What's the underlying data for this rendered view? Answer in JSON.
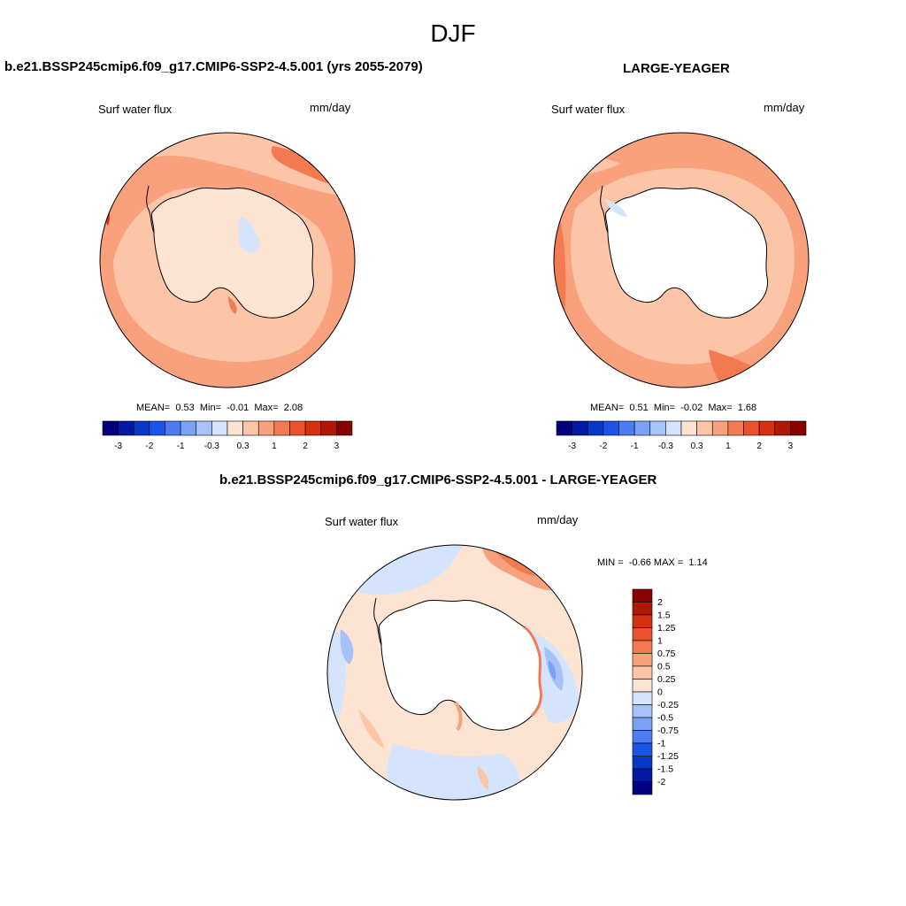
{
  "figure": {
    "season": "DJF"
  },
  "panels": [
    {
      "title": "b.e21.BSSP245cmip6.f09_g17.CMIP6-SSP2-4.5.001 (yrs 2055-2079)",
      "variable": "Surf water flux",
      "units": "mm/day",
      "stats": {
        "mean_label": "MEAN=",
        "mean": "0.53",
        "min_label": "Min=",
        "min": "-0.01",
        "max_label": "Max=",
        "max": "2.08"
      }
    },
    {
      "title": "LARGE-YEAGER",
      "variable": "Surf water flux",
      "units": "mm/day",
      "stats": {
        "mean_label": "MEAN=",
        "mean": "0.51",
        "min_label": "Min=",
        "min": "-0.02",
        "max_label": "Max=",
        "max": "1.68"
      }
    },
    {
      "title": "b.e21.BSSP245cmip6.f09_g17.CMIP6-SSP2-4.5.001 - LARGE-YEAGER",
      "variable": "Surf water flux",
      "units": "mm/day",
      "stats": {
        "min_label": "MIN =",
        "min": "-0.66",
        "max_label": "MAX =",
        "max": "1.14"
      }
    }
  ],
  "colorbars": {
    "horizontal": {
      "colors": [
        "#00007f",
        "#0219a4",
        "#0838c8",
        "#1a55ea",
        "#4c7cf2",
        "#7ba1f6",
        "#a6c2f9",
        "#d4e4fc",
        "#fde3d2",
        "#fcc5a8",
        "#f9a17c",
        "#f47a52",
        "#ec532c",
        "#d6310f",
        "#b11804",
        "#880300"
      ],
      "tick_labels": [
        "-3",
        "-2",
        "-1",
        "-0.3",
        "0.3",
        "1",
        "2",
        "3"
      ]
    },
    "vertical": {
      "colors": [
        "#880300",
        "#b11804",
        "#d6310f",
        "#ec532c",
        "#f47a52",
        "#f9a17c",
        "#fcc5a8",
        "#fde3d2",
        "#d4e4fc",
        "#a6c2f9",
        "#7ba1f6",
        "#4c7cf2",
        "#1a55ea",
        "#0838c8",
        "#0219a4",
        "#00007f"
      ],
      "tick_labels": [
        "2",
        "1.5",
        "1.25",
        "1",
        "0.75",
        "0.5",
        "0.25",
        "0",
        "-0.25",
        "-0.5",
        "-0.75",
        "-1",
        "-1.25",
        "-1.5",
        "-2"
      ]
    }
  }
}
